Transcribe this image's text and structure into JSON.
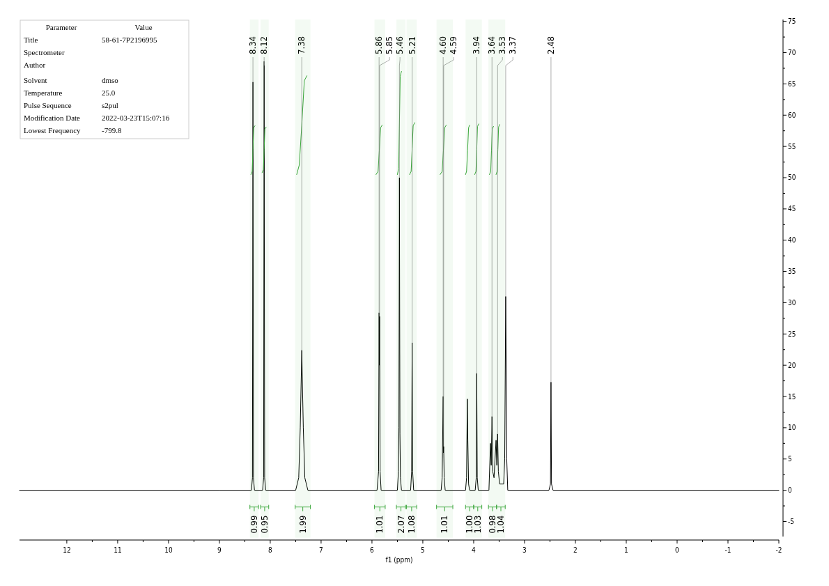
{
  "chart_data": {
    "type": "line",
    "xlabel": "f1 (ppm)",
    "xlim": [
      12.93,
      -2
    ],
    "ylim": [
      -7.4,
      75.3
    ],
    "xticks": [
      12,
      {
        "value": 11.5,
        "label": null
      },
      11,
      {
        "value": 10.5,
        "label": null
      },
      10,
      {
        "value": 9.5,
        "label": null
      },
      9,
      {
        "value": 8.5,
        "label": null
      },
      8,
      {
        "value": 7.5,
        "label": null
      },
      7,
      {
        "value": 6.5,
        "label": null
      },
      6,
      {
        "value": 5.5,
        "label": null
      },
      5,
      {
        "value": 4.5,
        "label": null
      },
      4,
      {
        "value": 3.5,
        "label": null
      },
      3,
      {
        "value": 2.5,
        "label": null
      },
      2,
      {
        "value": 1.5,
        "label": null
      },
      1,
      {
        "value": 0.5,
        "label": null
      },
      0,
      {
        "value": -0.5,
        "label": null
      },
      -1,
      {
        "value": -1.5,
        "label": null
      },
      -2
    ],
    "yticks": [
      -5,
      {
        "value": -2.5,
        "label": null
      },
      0,
      {
        "value": 2.5,
        "label": null
      },
      5,
      {
        "value": 7.5,
        "label": null
      },
      10,
      {
        "value": 12.5,
        "label": null
      },
      15,
      {
        "value": 17.5,
        "label": null
      },
      20,
      {
        "value": 22.5,
        "label": null
      },
      25,
      {
        "value": 27.5,
        "label": null
      },
      30,
      {
        "value": 32.5,
        "label": null
      },
      35,
      {
        "value": 37.5,
        "label": null
      },
      40,
      {
        "value": 42.5,
        "label": null
      },
      45,
      {
        "value": 47.5,
        "label": null
      },
      50,
      {
        "value": 52.5,
        "label": null
      },
      55,
      {
        "value": 57.5,
        "label": null
      },
      60,
      {
        "value": 62.5,
        "label": null
      },
      65,
      {
        "value": 67.5,
        "label": null
      },
      70,
      {
        "value": 72.5,
        "label": null
      },
      75
    ],
    "series": [
      {
        "color": "#000000",
        "x": [
          12.93,
          9,
          8.37,
          8.35,
          8.34,
          8.33,
          8.31,
          8.15,
          8.13,
          8.12,
          8.11,
          8.09,
          7.5,
          7.44,
          7.41,
          7.38,
          7.35,
          7.32,
          7.26,
          5.9,
          5.87,
          5.86,
          5.855,
          5.85,
          5.84,
          5.82,
          5.5,
          5.48,
          5.47,
          5.46,
          5.45,
          5.44,
          5.42,
          5.24,
          5.22,
          5.21,
          5.2,
          5.18,
          4.64,
          4.62,
          4.6,
          4.595,
          4.59,
          4.58,
          4.56,
          4.16,
          4.14,
          4.125,
          4.115,
          4.1,
          4.08,
          3.97,
          3.95,
          3.94,
          3.93,
          3.91,
          3.7,
          3.67,
          3.655,
          3.64,
          3.625,
          3.6,
          3.56,
          3.545,
          3.53,
          3.515,
          3.49,
          3.41,
          3.39,
          3.37,
          3.35,
          3.33,
          2.52,
          2.49,
          2.48,
          2.47,
          2.44,
          -2
        ],
        "values": [
          0,
          0,
          0,
          2,
          65.3,
          2,
          0,
          0,
          2,
          68.6,
          2,
          0,
          0,
          2,
          10,
          22.4,
          10,
          2,
          0,
          0,
          3,
          28.4,
          20,
          27.8,
          3,
          0,
          0,
          3,
          10,
          50,
          9,
          2,
          0,
          0,
          3,
          23.6,
          3,
          0,
          0,
          2,
          15,
          6,
          7,
          2,
          0,
          0,
          2,
          14.6,
          8,
          1,
          0,
          0,
          2,
          18.7,
          2,
          0,
          0,
          7.5,
          4,
          11.8,
          3,
          2,
          8,
          4,
          9,
          3,
          1,
          1,
          5,
          31,
          5,
          0,
          0,
          1,
          17.3,
          1,
          0,
          0
        ]
      },
      {
        "color": "#3aa63a",
        "x": [
          8.38,
          8.355,
          8.34,
          8.325,
          8.3
        ],
        "values": [
          50.5,
          51,
          54.5,
          58,
          58.3
        ]
      },
      {
        "color": "#3aa63a",
        "x": [
          8.16,
          8.135,
          8.12,
          8.105,
          8.08
        ],
        "values": [
          50.8,
          51.3,
          54.5,
          57.8,
          58.1
        ]
      },
      {
        "color": "#3aa63a",
        "x": [
          7.48,
          7.43,
          7.38,
          7.33,
          7.28
        ],
        "values": [
          50.5,
          52,
          58.4,
          65.5,
          66.3
        ]
      },
      {
        "color": "#3aa63a",
        "x": [
          5.92,
          5.88,
          5.855,
          5.83,
          5.8
        ],
        "values": [
          50.5,
          51,
          54.4,
          58,
          58.4
        ]
      },
      {
        "color": "#3aa63a",
        "x": [
          5.5,
          5.475,
          5.46,
          5.445,
          5.42
        ],
        "values": [
          50.5,
          51.5,
          58.7,
          66.2,
          67
        ]
      },
      {
        "color": "#3aa63a",
        "x": [
          5.26,
          5.23,
          5.21,
          5.19,
          5.16
        ],
        "values": [
          50.5,
          51,
          54.6,
          58.3,
          58.8
        ]
      },
      {
        "color": "#3aa63a",
        "x": [
          4.66,
          4.62,
          4.595,
          4.57,
          4.54
        ],
        "values": [
          50.5,
          51,
          54.4,
          58,
          58.4
        ]
      },
      {
        "color": "#3aa63a",
        "x": [
          4.16,
          4.14,
          4.12,
          4.1,
          4.08
        ],
        "values": [
          50.5,
          51,
          54.4,
          58,
          58.4
        ]
      },
      {
        "color": "#3aa63a",
        "x": [
          3.98,
          3.955,
          3.94,
          3.925,
          3.9
        ],
        "values": [
          50.5,
          51,
          54.5,
          58.2,
          58.6
        ]
      },
      {
        "color": "#3aa63a",
        "x": [
          3.69,
          3.665,
          3.65,
          3.635,
          3.61
        ],
        "values": [
          50.5,
          51,
          54.3,
          57.8,
          58.2
        ]
      },
      {
        "color": "#3aa63a",
        "x": [
          3.56,
          3.54,
          3.525,
          3.51,
          3.49
        ],
        "values": [
          50.5,
          51,
          54.5,
          58.1,
          58.5
        ]
      }
    ],
    "annotations": [
      "Parameter\tValue",
      "Title\t58-61-7P2196995",
      "Spectrometer\t",
      "Author\t",
      "Solvent\tdmso",
      "Temperature\t25.0",
      "Pulse Sequence\ts2pul",
      "Modification Date\t2022-03-23T15:07:16",
      "Lowest Frequency\t-799.8",
      {
        "text": "8.34",
        "x": 8.34,
        "y": 65.3
      },
      {
        "text": "8.12",
        "x": 8.12,
        "y": 68.6
      },
      {
        "text": "7.38",
        "x": 7.38,
        "y": 22.4
      },
      {
        "text": "5.86",
        "x": 5.86,
        "y": 28.4
      },
      {
        "text": "5.85",
        "x": 5.85,
        "y": 27.8
      },
      {
        "text": "5.46",
        "x": 5.46,
        "y": 50
      },
      {
        "text": "5.21",
        "x": 5.21,
        "y": 23.6
      },
      {
        "text": "4.60",
        "x": 4.6,
        "y": 15
      },
      {
        "text": "4.59",
        "x": 4.59,
        "y": 7
      },
      {
        "text": "3.94",
        "x": 3.94,
        "y": 18.7
      },
      {
        "text": "3.64",
        "x": 3.64,
        "y": 11.8
      },
      {
        "text": "3.53",
        "x": 3.53,
        "y": 9
      },
      {
        "text": "3.37",
        "x": 3.37,
        "y": 31
      },
      {
        "text": "2.48",
        "x": 2.48,
        "y": 17.3
      }
    ],
    "bands": [
      {
        "axis": "x",
        "from": 8.4,
        "to": 8.23,
        "label": "0.99",
        "color": "#3aa63a"
      },
      {
        "axis": "x",
        "from": 8.19,
        "to": 8.03,
        "label": "0.95",
        "color": "#3aa63a"
      },
      {
        "axis": "x",
        "from": 7.51,
        "to": 7.21,
        "label": "1.99",
        "color": "#3aa63a"
      },
      {
        "axis": "x",
        "from": 5.95,
        "to": 5.74,
        "label": "1.01",
        "color": "#3aa63a"
      },
      {
        "axis": "x",
        "from": 5.52,
        "to": 5.34,
        "label": "2.07",
        "color": "#3aa63a"
      },
      {
        "axis": "x",
        "from": 5.32,
        "to": 5.12,
        "label": "1.08",
        "color": "#3aa63a"
      },
      {
        "axis": "x",
        "from": 4.73,
        "to": 4.41,
        "label": "1.01",
        "color": "#3aa63a"
      },
      {
        "axis": "x",
        "from": 4.16,
        "to": 4.0,
        "label": "1.00",
        "color": "#3aa63a"
      },
      {
        "axis": "x",
        "from": 4.0,
        "to": 3.84,
        "label": "1.03",
        "color": "#3aa63a"
      },
      {
        "axis": "x",
        "from": 3.71,
        "to": 3.55,
        "label": "0.98",
        "color": "#3aa63a"
      },
      {
        "axis": "x",
        "from": 3.55,
        "to": 3.38,
        "label": "1.04",
        "color": "#3aa63a"
      }
    ]
  }
}
